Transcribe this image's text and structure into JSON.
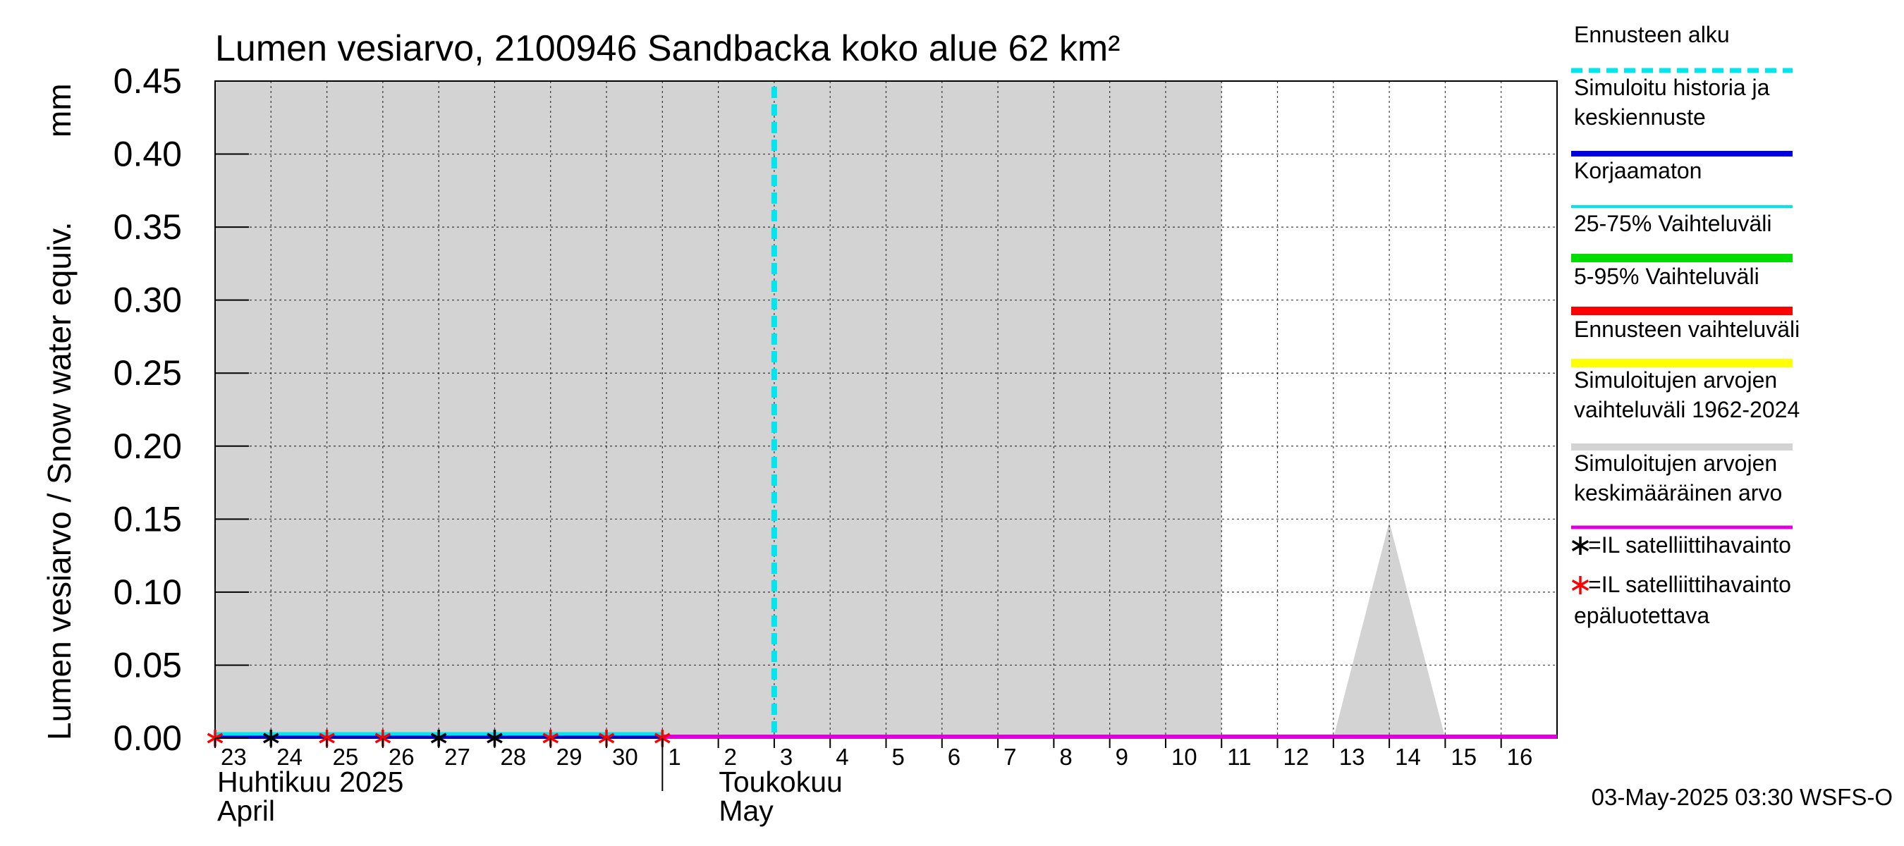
{
  "chart_data": {
    "type": "area",
    "title": "Lumen vesiarvo, 2100946 Sandbacka koko alue 62 km²",
    "ylabel": "Lumen vesiarvo / Snow water equiv.",
    "yunit": "mm",
    "ylim": [
      0,
      0.45
    ],
    "yticks": [
      "0.00",
      "0.05",
      "0.10",
      "0.15",
      "0.20",
      "0.25",
      "0.30",
      "0.35",
      "0.40",
      "0.45"
    ],
    "grid": true,
    "x_range_days": [
      0,
      24
    ],
    "x_tick_labels": [
      "23",
      "24",
      "25",
      "26",
      "27",
      "28",
      "29",
      "30",
      "1",
      "2",
      "3",
      "4",
      "5",
      "6",
      "7",
      "8",
      "9",
      "10",
      "11",
      "12",
      "13",
      "14",
      "15",
      "16"
    ],
    "months": [
      {
        "fi": "Huhtikuu  2025",
        "en": "April",
        "start_day": 0
      },
      {
        "fi": "Toukokuu",
        "en": "May",
        "start_day": 8
      }
    ],
    "forecast_start_day": 10,
    "series": [
      {
        "name": "Simuloitujen arvojen vaihteluväli 1962-2024",
        "color": "#d3d3d3",
        "points": [
          [
            0,
            0.45
          ],
          [
            18,
            0.45
          ],
          [
            18,
            0
          ],
          [
            20,
            0
          ],
          [
            21,
            0.148
          ],
          [
            22,
            0
          ],
          [
            24,
            0
          ]
        ]
      },
      {
        "name": "Korjaamaton",
        "color": "#00e5ee",
        "values": [
          [
            0,
            0
          ],
          [
            8,
            0
          ]
        ]
      },
      {
        "name": "Simuloitu historia ja keskiennuste",
        "color": "#0000dd",
        "values": [
          [
            0,
            0
          ],
          [
            24,
            0
          ]
        ]
      },
      {
        "name": "Simuloitujen arvojen keskimääräinen arvo",
        "color": "#dd00dd",
        "values": [
          [
            8,
            0
          ],
          [
            24,
            0
          ]
        ]
      }
    ],
    "satellite_observations": [
      {
        "day": 0,
        "value": 0,
        "reliable": false
      },
      {
        "day": 1,
        "value": 0,
        "reliable": true
      },
      {
        "day": 2,
        "value": 0,
        "reliable": false
      },
      {
        "day": 3,
        "value": 0,
        "reliable": false
      },
      {
        "day": 4,
        "value": 0,
        "reliable": true
      },
      {
        "day": 5,
        "value": 0,
        "reliable": true
      },
      {
        "day": 6,
        "value": 0,
        "reliable": false
      },
      {
        "day": 7,
        "value": 0,
        "reliable": false
      },
      {
        "day": 8,
        "value": 0,
        "reliable": false
      }
    ],
    "legend": [
      {
        "label": "Ennusteen alku",
        "color": "#00e5ee",
        "style": "dashed"
      },
      {
        "label": "Simuloitu historia ja keskiennuste",
        "color": "#0000dd",
        "style": "solid"
      },
      {
        "label": "Korjaamaton",
        "color": "#00e5ee",
        "style": "thin"
      },
      {
        "label": "25-75% Vaihteluväli",
        "color": "#00dd00",
        "style": "solid"
      },
      {
        "label": "5-95% Vaihteluväli",
        "color": "#ff0000",
        "style": "solid"
      },
      {
        "label": "Ennusteen vaihteluväli",
        "color": "#ffff00",
        "style": "solid"
      },
      {
        "label": "Simuloitujen arvojen vaihteluväli 1962-2024",
        "color": "#d3d3d3",
        "style": "solid"
      },
      {
        "label": "Simuloitujen arvojen keskimääräinen arvo",
        "color": "#dd00dd",
        "style": "solid"
      },
      {
        "label": "=IL satelliittihavainto",
        "color": "#000000",
        "style": "star"
      },
      {
        "label": "=IL satelliittihavainto epäluotettava",
        "color": "#ff0000",
        "style": "star"
      }
    ],
    "footer": "03-May-2025 03:30 WSFS-O"
  }
}
